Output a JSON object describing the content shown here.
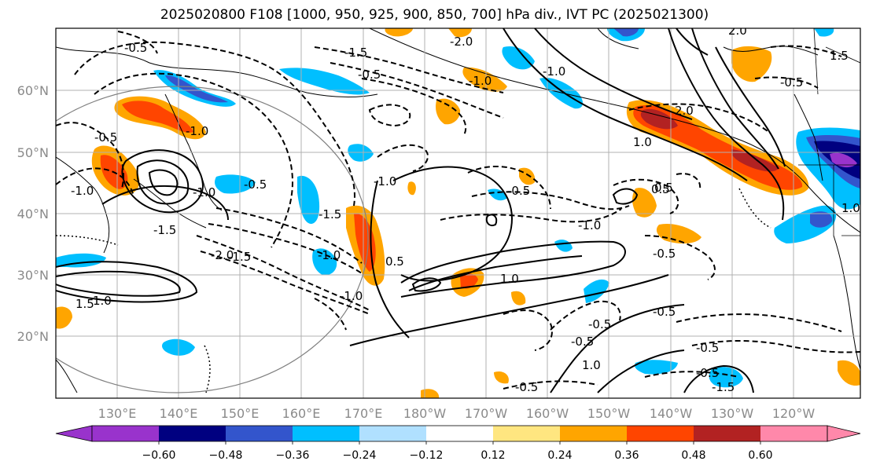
{
  "title": "2025020800 F108 [1000, 950, 925, 900, 850, 700] hPa div., IVT PC (2025021300)",
  "map": {
    "lon_labels": [
      "130°E",
      "140°E",
      "150°E",
      "160°E",
      "170°E",
      "180°W",
      "170°W",
      "160°W",
      "150°W",
      "140°W",
      "130°W",
      "120°W"
    ],
    "lat_labels": [
      "60°N",
      "50°N",
      "40°N",
      "30°N",
      "20°N"
    ]
  },
  "colorbar": {
    "colors": [
      "#9933cc",
      "#000080",
      "#3355cc",
      "#00bfff",
      "#b0e0ff",
      "#ffffff",
      "#ffe680",
      "#ffa500",
      "#ff4500",
      "#b22222",
      "#ff88aa"
    ],
    "tick_labels": [
      "−0.60",
      "−0.48",
      "−0.36",
      "−0.24",
      "−0.12",
      "0.12",
      "0.24",
      "0.36",
      "0.48",
      "0.60"
    ]
  },
  "contour_labels": [
    "-0.5",
    "-0.5",
    "-1.5",
    "-2.0",
    "-1.0",
    "-1.0",
    "-1.0",
    "-0.5",
    "-1.0",
    "-1.5",
    "-0.5",
    "-1.0",
    "-1.5",
    "-2.0",
    "-1.5",
    "0.5",
    "1.0",
    "1.5",
    "-1.0",
    "-0.5",
    "0.5",
    "-1.0",
    "1.0",
    "-0.5",
    "-0.5",
    "1.0",
    "-0.5",
    "2.0",
    "1.0",
    "-0.5",
    "-0.5",
    "-0.5",
    "-0.5",
    "-1.5",
    "0.5",
    "2.0",
    "1.5",
    "1.0",
    "-0.5",
    "-1.0",
    "-1.0"
  ]
}
